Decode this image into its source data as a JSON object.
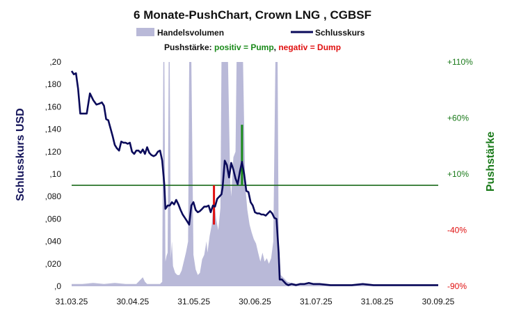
{
  "chart_data": {
    "type": "line",
    "title": "6 Monate-PushChart,  Crown LNG , CGBSF",
    "legend": {
      "volume_label": "Handelsvolumen",
      "close_label": "Schlusskurs",
      "push_prefix": "Pushstärke: ",
      "push_positive": "positiv = Pump",
      "push_separator": ", ",
      "push_negative": "negativ = Dump",
      "placement": "top-center"
    },
    "ylabel_left": "Schlusskurs USD",
    "ylabel_right": "Pushstärke",
    "ylim_left": [
      0,
      0.2
    ],
    "ylim_right": [
      -90,
      110
    ],
    "x_ticks": [
      "31.03.25",
      "30.04.25",
      "31.05.25",
      "30.06.25",
      "31.07.25",
      "31.08.25",
      "30.09.25"
    ],
    "y_ticks_left": [
      ",0",
      ",020",
      ",040",
      ",060",
      ",080",
      ",10",
      ",120",
      ",140",
      ",160",
      ",180",
      ",20"
    ],
    "y_ticks_right": [
      {
        "value": 110,
        "label": "+110%",
        "color": "#1a7a1a"
      },
      {
        "value": 60,
        "label": "+60%",
        "color": "#1a7a1a"
      },
      {
        "value": 10,
        "label": "+10%",
        "color": "#1a7a1a"
      },
      {
        "value": -40,
        "label": "-40%",
        "color": "#e01010"
      },
      {
        "value": -90,
        "label": "-90%",
        "color": "#e01010"
      }
    ],
    "push_baseline": 0,
    "grid": false,
    "colors": {
      "close": "#0a0a5a",
      "volume": "#b9b9d8",
      "baseline": "#1a6a1a",
      "pump": "#1a8a1a",
      "dump": "#e01010",
      "left_axis_title": "#14145a",
      "right_axis_title": "#1a7a1a"
    },
    "series": [
      {
        "name": "Schlusskurs",
        "kind": "line",
        "points": [
          [
            0,
            0.192
          ],
          [
            2,
            0.189
          ],
          [
            4,
            0.19
          ],
          [
            6,
            0.176
          ],
          [
            8,
            0.154
          ],
          [
            11,
            0.154
          ],
          [
            14,
            0.154
          ],
          [
            17,
            0.172
          ],
          [
            20,
            0.166
          ],
          [
            23,
            0.162
          ],
          [
            26,
            0.163
          ],
          [
            28,
            0.164
          ],
          [
            30,
            0.161
          ],
          [
            32,
            0.149
          ],
          [
            34,
            0.148
          ],
          [
            36,
            0.141
          ],
          [
            38,
            0.134
          ],
          [
            40,
            0.126
          ],
          [
            42,
            0.123
          ],
          [
            44,
            0.121
          ],
          [
            46,
            0.129
          ],
          [
            48,
            0.128
          ],
          [
            50,
            0.128
          ],
          [
            52,
            0.127
          ],
          [
            54,
            0.128
          ],
          [
            56,
            0.12
          ],
          [
            58,
            0.118
          ],
          [
            60,
            0.121
          ],
          [
            62,
            0.121
          ],
          [
            64,
            0.119
          ],
          [
            66,
            0.122
          ],
          [
            68,
            0.118
          ],
          [
            70,
            0.124
          ],
          [
            72,
            0.119
          ],
          [
            74,
            0.117
          ],
          [
            76,
            0.116
          ],
          [
            78,
            0.117
          ],
          [
            80,
            0.12
          ],
          [
            82,
            0.121
          ],
          [
            84,
            0.112
          ],
          [
            86,
            0.09
          ],
          [
            87,
            0.069
          ],
          [
            89,
            0.072
          ],
          [
            91,
            0.072
          ],
          [
            93,
            0.075
          ],
          [
            95,
            0.073
          ],
          [
            97,
            0.077
          ],
          [
            99,
            0.073
          ],
          [
            101,
            0.068
          ],
          [
            103,
            0.064
          ],
          [
            105,
            0.061
          ],
          [
            107,
            0.058
          ],
          [
            109,
            0.055
          ],
          [
            111,
            0.072
          ],
          [
            113,
            0.075
          ],
          [
            115,
            0.068
          ],
          [
            117,
            0.066
          ],
          [
            119,
            0.067
          ],
          [
            121,
            0.069
          ],
          [
            123,
            0.071
          ],
          [
            125,
            0.071
          ],
          [
            127,
            0.072
          ],
          [
            129,
            0.066
          ],
          [
            131,
            0.072
          ],
          [
            133,
            0.071
          ],
          [
            135,
            0.078
          ],
          [
            137,
            0.08
          ],
          [
            139,
            0.082
          ],
          [
            140,
            0.088
          ],
          [
            142,
            0.112
          ],
          [
            144,
            0.108
          ],
          [
            146,
            0.097
          ],
          [
            148,
            0.11
          ],
          [
            150,
            0.104
          ],
          [
            152,
            0.096
          ],
          [
            154,
            0.091
          ],
          [
            156,
            0.102
          ],
          [
            158,
            0.111
          ],
          [
            160,
            0.1
          ],
          [
            162,
            0.085
          ],
          [
            164,
            0.084
          ],
          [
            166,
            0.075
          ],
          [
            168,
            0.072
          ],
          [
            170,
            0.066
          ],
          [
            172,
            0.065
          ],
          [
            174,
            0.065
          ],
          [
            176,
            0.064
          ],
          [
            178,
            0.064
          ],
          [
            180,
            0.063
          ],
          [
            182,
            0.065
          ],
          [
            184,
            0.067
          ],
          [
            186,
            0.065
          ],
          [
            188,
            0.061
          ],
          [
            190,
            0.06
          ],
          [
            192,
            0.03
          ],
          [
            193,
            0.006
          ],
          [
            195,
            0.006
          ],
          [
            197,
            0.004
          ],
          [
            199,
            0.002
          ],
          [
            201,
            0.001
          ],
          [
            204,
            0.002
          ],
          [
            208,
            0.001
          ],
          [
            212,
            0.002
          ],
          [
            216,
            0.002
          ],
          [
            220,
            0.003
          ],
          [
            224,
            0.002
          ],
          [
            230,
            0.002
          ],
          [
            240,
            0.001
          ],
          [
            250,
            0.001
          ],
          [
            260,
            0.001
          ],
          [
            270,
            0.002
          ],
          [
            280,
            0.001
          ],
          [
            290,
            0.001
          ],
          [
            300,
            0.001
          ],
          [
            310,
            0.001
          ],
          [
            320,
            0.001
          ],
          [
            330,
            0.001
          ],
          [
            340,
            0.001
          ]
        ]
      },
      {
        "name": "Handelsvolumen",
        "kind": "area",
        "relative_scale": true,
        "points": [
          [
            0,
            0.002
          ],
          [
            10,
            0.002
          ],
          [
            20,
            0.003
          ],
          [
            30,
            0.002
          ],
          [
            40,
            0.003
          ],
          [
            50,
            0.002
          ],
          [
            60,
            0.002
          ],
          [
            66,
            0.008
          ],
          [
            68,
            0.004
          ],
          [
            70,
            0.002
          ],
          [
            80,
            0.002
          ],
          [
            82,
            0.002
          ],
          [
            84,
            0.004
          ],
          [
            85,
            0.2
          ],
          [
            86,
            0.2
          ],
          [
            87,
            0.022
          ],
          [
            88,
            0.027
          ],
          [
            89,
            0.03
          ],
          [
            90,
            0.2
          ],
          [
            91,
            0.2
          ],
          [
            92,
            0.025
          ],
          [
            93,
            0.04
          ],
          [
            94,
            0.018
          ],
          [
            96,
            0.012
          ],
          [
            98,
            0.01
          ],
          [
            100,
            0.01
          ],
          [
            102,
            0.014
          ],
          [
            104,
            0.022
          ],
          [
            106,
            0.03
          ],
          [
            108,
            0.04
          ],
          [
            109,
            0.2
          ],
          [
            111,
            0.2
          ],
          [
            113,
            0.028
          ],
          [
            115,
            0.015
          ],
          [
            117,
            0.01
          ],
          [
            119,
            0.012
          ],
          [
            121,
            0.024
          ],
          [
            123,
            0.028
          ],
          [
            125,
            0.04
          ],
          [
            126,
            0.03
          ],
          [
            128,
            0.045
          ],
          [
            130,
            0.055
          ],
          [
            132,
            0.078
          ],
          [
            134,
            0.06
          ],
          [
            136,
            0.05
          ],
          [
            138,
            0.07
          ],
          [
            139,
            0.2
          ],
          [
            141,
            0.2
          ],
          [
            143,
            0.2
          ],
          [
            145,
            0.2
          ],
          [
            147,
            0.095
          ],
          [
            148,
            0.08
          ],
          [
            150,
            0.115
          ],
          [
            152,
            0.12
          ],
          [
            153,
            0.2
          ],
          [
            155,
            0.2
          ],
          [
            157,
            0.2
          ],
          [
            159,
            0.2
          ],
          [
            161,
            0.09
          ],
          [
            163,
            0.068
          ],
          [
            165,
            0.055
          ],
          [
            167,
            0.048
          ],
          [
            169,
            0.042
          ],
          [
            171,
            0.038
          ],
          [
            173,
            0.03
          ],
          [
            175,
            0.022
          ],
          [
            177,
            0.03
          ],
          [
            179,
            0.022
          ],
          [
            181,
            0.025
          ],
          [
            183,
            0.02
          ],
          [
            185,
            0.025
          ],
          [
            187,
            0.04
          ],
          [
            189,
            0.2
          ],
          [
            191,
            0.2
          ],
          [
            192,
            0.04
          ],
          [
            194,
            0.01
          ],
          [
            196,
            0.008
          ],
          [
            198,
            0.006
          ],
          [
            200,
            0.004
          ],
          [
            204,
            0.003
          ],
          [
            210,
            0.002
          ],
          [
            220,
            0.002
          ],
          [
            230,
            0.002
          ],
          [
            240,
            0.001
          ],
          [
            260,
            0.001
          ],
          [
            280,
            0.001
          ],
          [
            300,
            0.001
          ],
          [
            320,
            0.001
          ],
          [
            340,
            0.001
          ]
        ]
      },
      {
        "name": "Pushstärke",
        "kind": "bars",
        "values": [
          {
            "x": 132,
            "push": -35
          },
          {
            "x": 136,
            "push": 0
          },
          {
            "x": 158,
            "push": 54
          }
        ]
      }
    ]
  }
}
